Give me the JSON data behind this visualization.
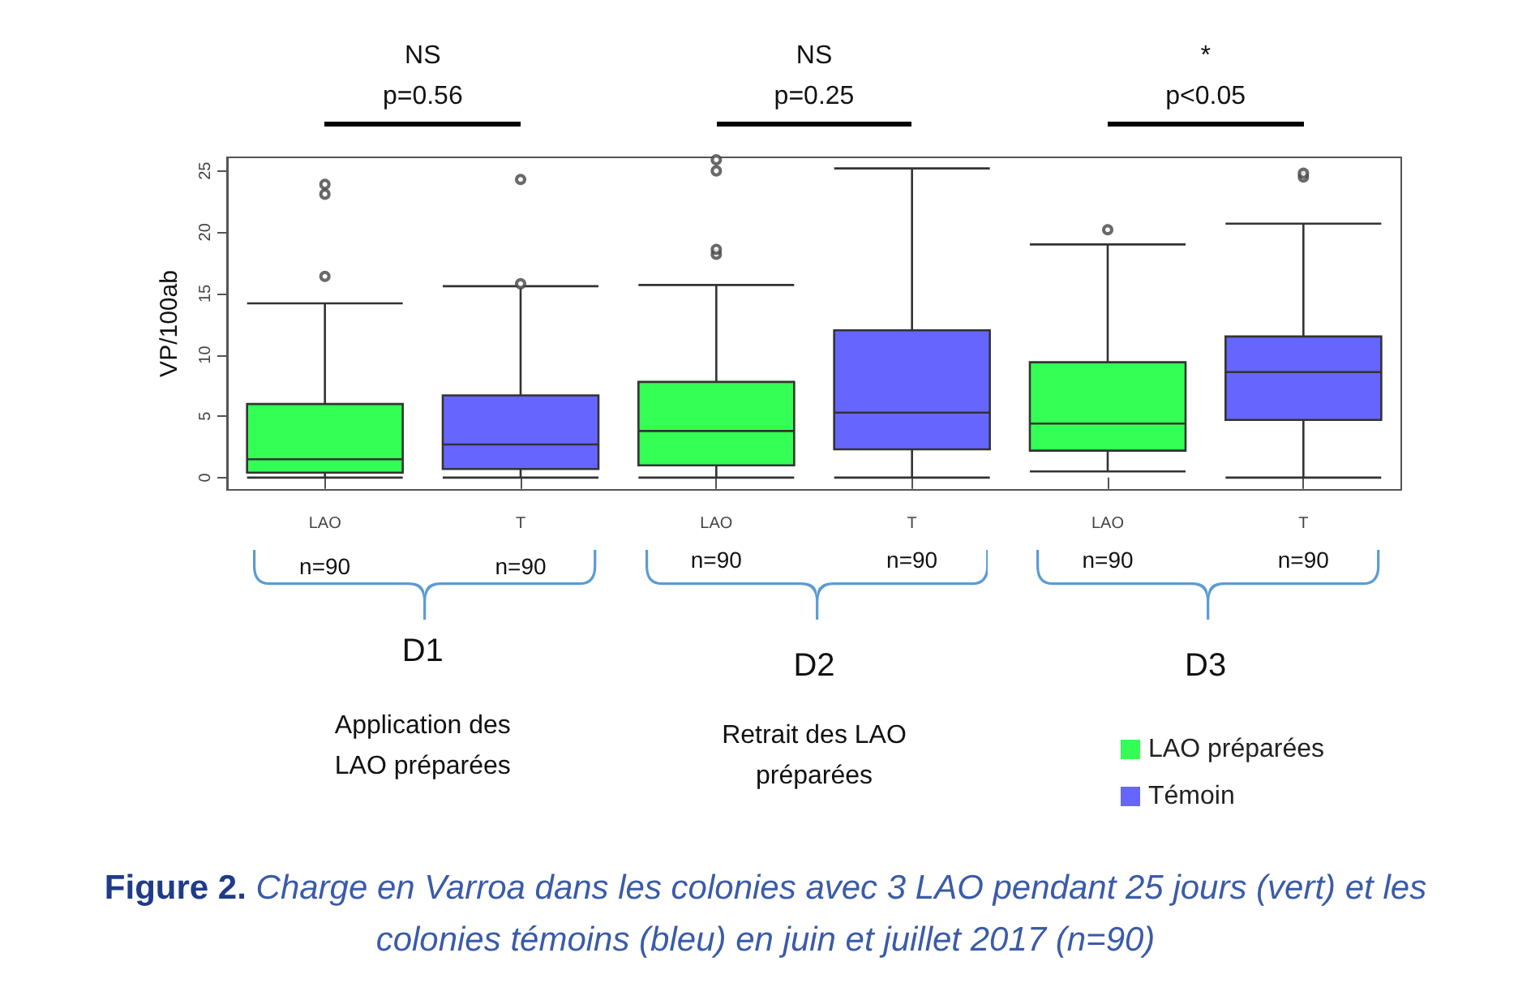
{
  "chart_data": {
    "type": "box",
    "ylabel": "VP/100ab",
    "categories": [
      "LAO",
      "T",
      "LAO",
      "T",
      "LAO",
      "T"
    ],
    "series": [
      {
        "name": "LAO préparées",
        "color": "#33ff55",
        "boxes": [
          {
            "low": 0,
            "q1": 0.4,
            "median": 1.5,
            "q3": 6.0,
            "high": 14.2,
            "outliers": [
              16.4,
              23.1,
              23.9
            ]
          },
          null,
          {
            "low": 0,
            "q1": 1.0,
            "median": 3.8,
            "q3": 7.8,
            "high": 15.7,
            "outliers": [
              18.2,
              18.6,
              25.0,
              25.9
            ]
          },
          null,
          {
            "low": 0.5,
            "q1": 2.2,
            "median": 4.4,
            "q3": 9.4,
            "high": 19.0,
            "outliers": [
              20.2
            ]
          },
          null
        ]
      },
      {
        "name": "Témoin",
        "color": "#6666ff",
        "boxes": [
          null,
          {
            "low": 0,
            "q1": 0.7,
            "median": 2.7,
            "q3": 6.7,
            "high": 15.6,
            "outliers": [
              15.8,
              24.3
            ]
          },
          null,
          {
            "low": 0,
            "q1": 2.3,
            "median": 5.3,
            "q3": 12.0,
            "high": 25.2
          },
          null,
          {
            "low": 0,
            "q1": 4.7,
            "median": 8.6,
            "q3": 11.5,
            "high": 20.7,
            "outliers": [
              24.5,
              24.8
            ]
          }
        ]
      }
    ],
    "ylim": [
      -1,
      26.1
    ],
    "yticks": [
      0,
      5,
      10,
      15,
      20,
      25
    ],
    "legend": "bottom right",
    "annotations": [
      "NS",
      "p=0.56",
      "NS",
      "p=0.25",
      "*",
      "p<0.05",
      "n=90",
      "n=90",
      "n=90",
      "n=90",
      "n=90",
      "n=90",
      "D1",
      "D2",
      "D3",
      "Application des LAO préparées",
      "Retrait des LAO préparées",
      "Figure 2.",
      "Charge en Varroa dans les colonies avec 3 LAO pendant 25 jours (vert) et les colonies témoins (bleu) en juin et juillet 2017 (n=90)"
    ]
  }
}
